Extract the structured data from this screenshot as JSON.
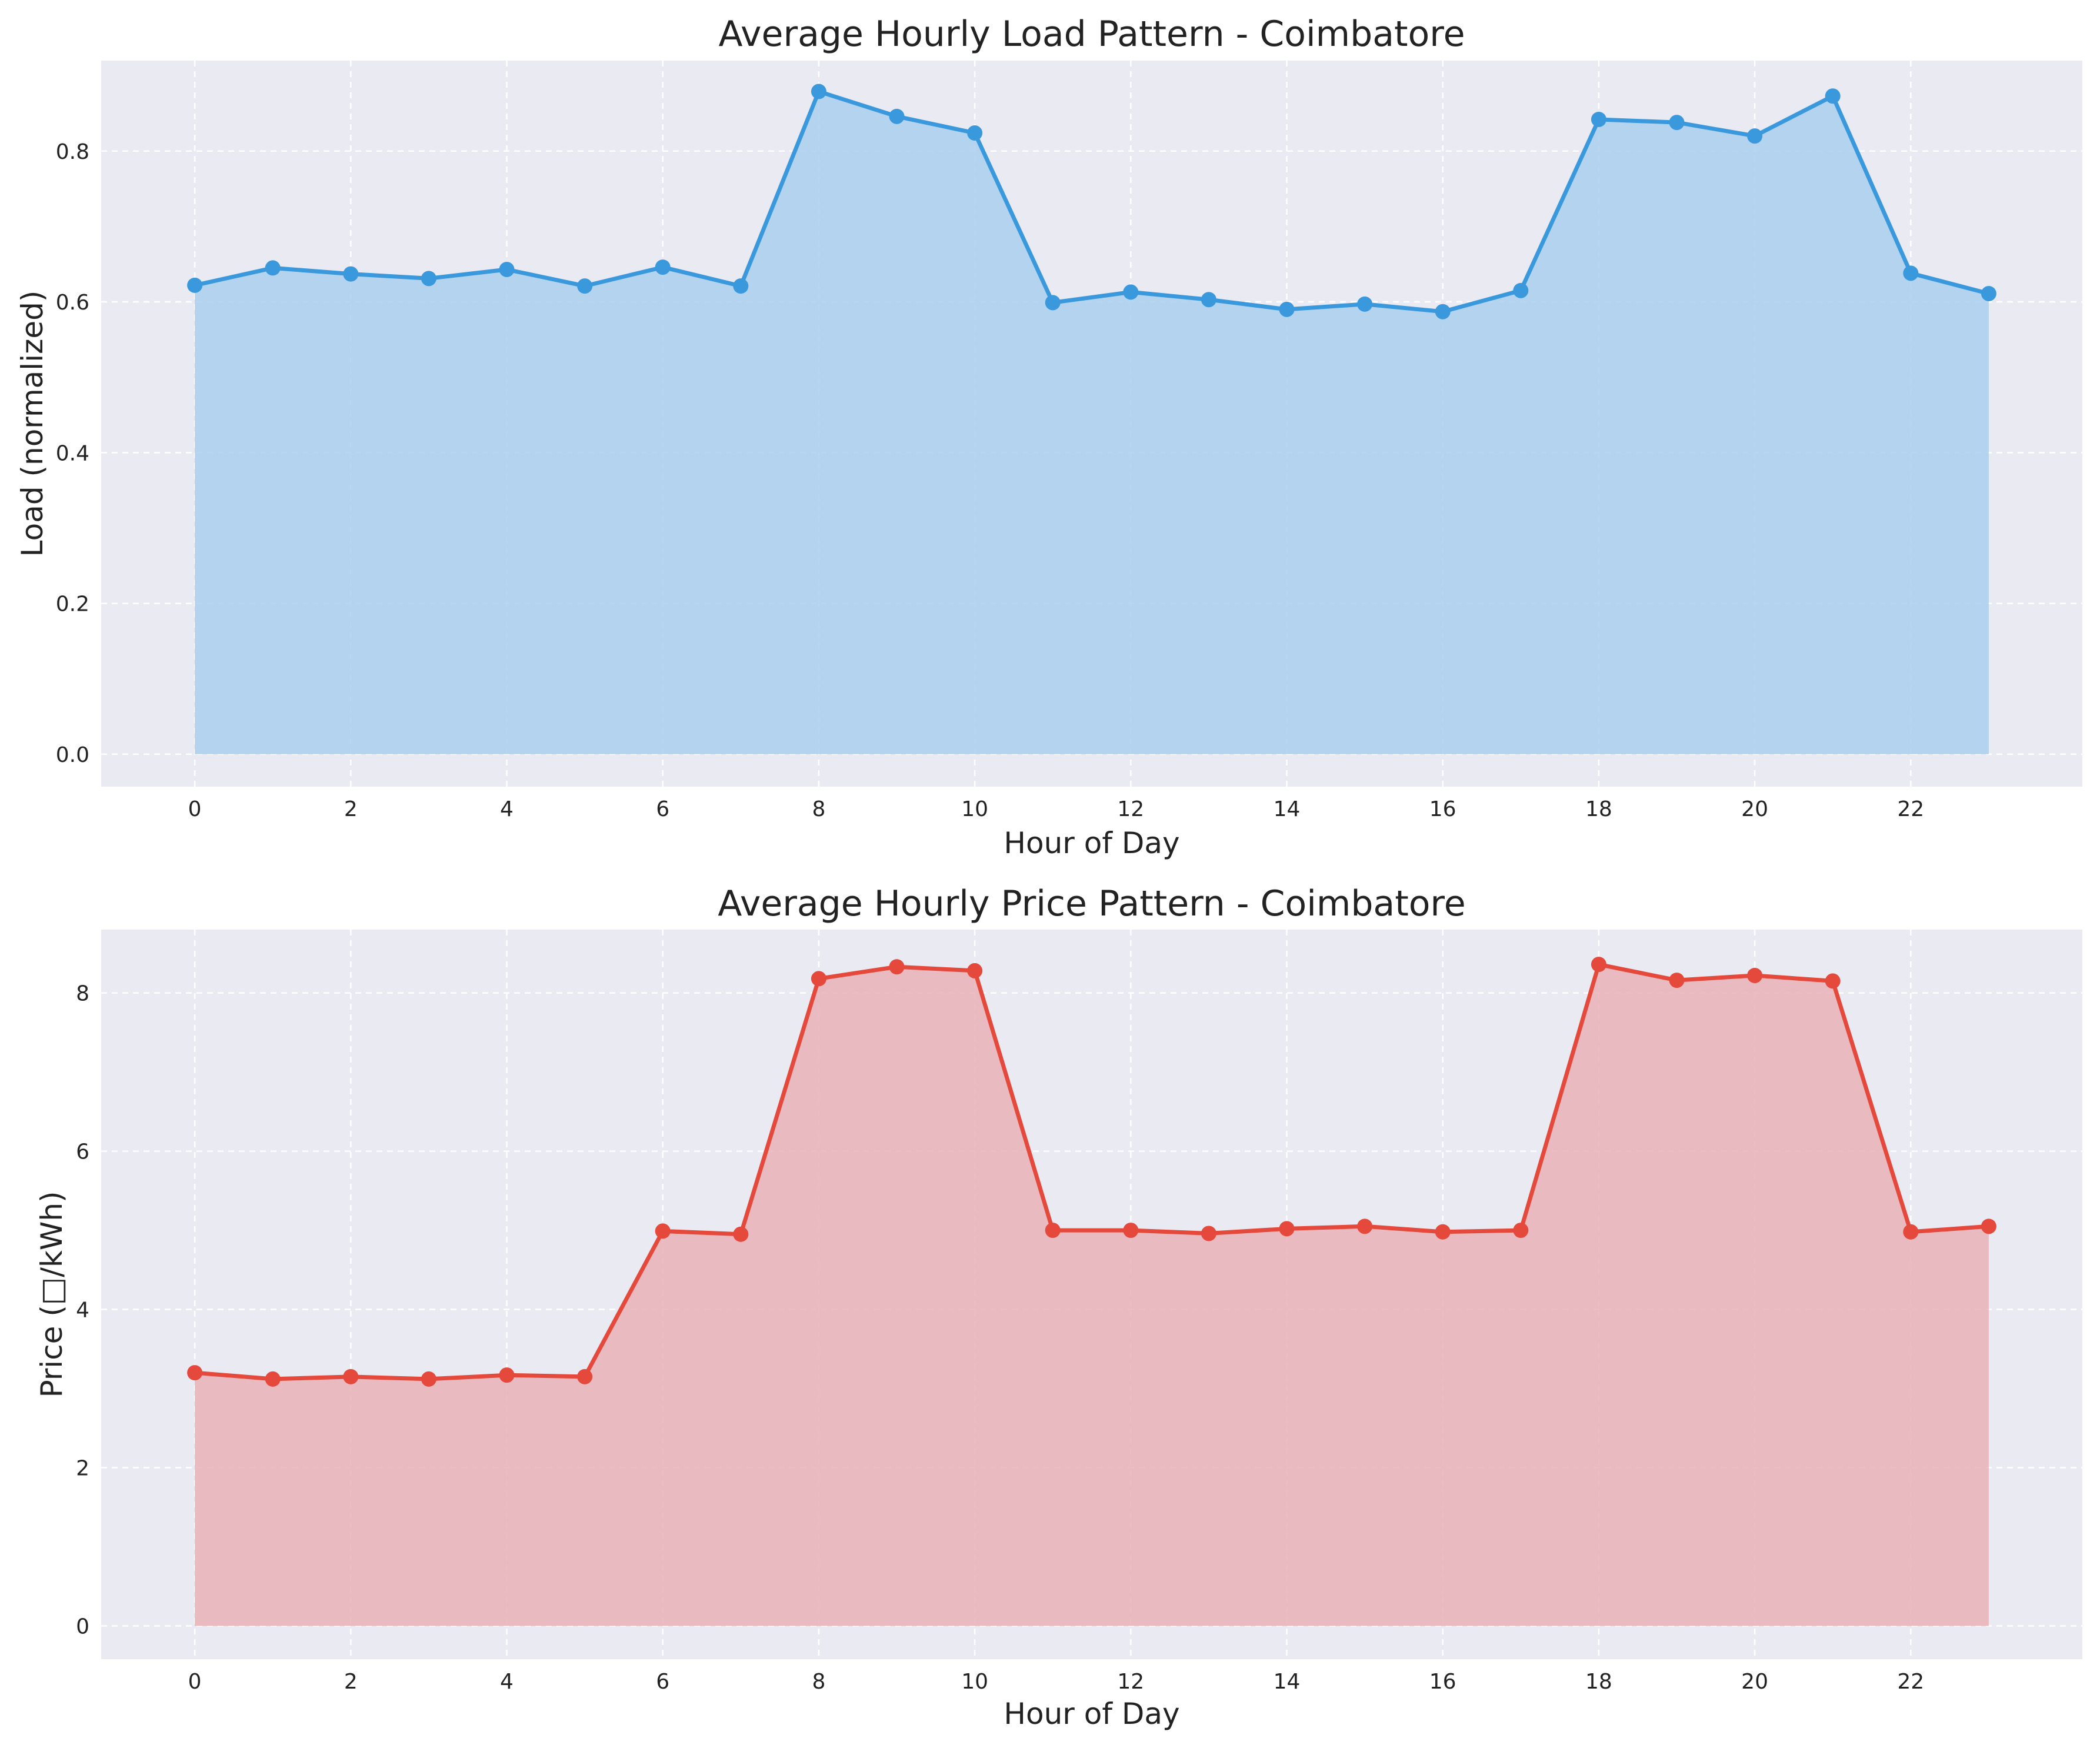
{
  "chart_data": [
    {
      "type": "area",
      "title": "Average Hourly Load Pattern - Coimbatore",
      "xlabel": "Hour of Day",
      "ylabel": "Load (normalized)",
      "x": [
        0,
        1,
        2,
        3,
        4,
        5,
        6,
        7,
        8,
        9,
        10,
        11,
        12,
        13,
        14,
        15,
        16,
        17,
        18,
        19,
        20,
        21,
        22,
        23
      ],
      "series": [
        {
          "values": [
            0.622,
            0.645,
            0.637,
            0.631,
            0.643,
            0.621,
            0.646,
            0.621,
            0.879,
            0.846,
            0.824,
            0.599,
            0.613,
            0.603,
            0.59,
            0.597,
            0.587,
            0.615,
            0.842,
            0.838,
            0.82,
            0.873,
            0.638,
            0.611
          ]
        }
      ],
      "xlim": [
        -1.2,
        24.2
      ],
      "ylim": [
        -0.043,
        0.92
      ],
      "xticks": [
        "0",
        "2",
        "4",
        "6",
        "8",
        "10",
        "12",
        "14",
        "16",
        "18",
        "20",
        "22"
      ],
      "xtick_values": [
        0,
        2,
        4,
        6,
        8,
        10,
        12,
        14,
        16,
        18,
        20,
        22
      ],
      "yticks": [
        "0.0",
        "0.2",
        "0.4",
        "0.6",
        "0.8"
      ],
      "ytick_values": [
        0,
        0.2,
        0.4,
        0.6,
        0.8
      ],
      "grid": true,
      "colors": {
        "line": "#3a99dc",
        "fill": "#a9cfee",
        "background": "#eaeaf2"
      }
    },
    {
      "type": "area",
      "title": "Average Hourly Price Pattern - Coimbatore",
      "xlabel": "Hour of Day",
      "ylabel": "Price (□/kWh)",
      "x": [
        0,
        1,
        2,
        3,
        4,
        5,
        6,
        7,
        8,
        9,
        10,
        11,
        12,
        13,
        14,
        15,
        16,
        17,
        18,
        19,
        20,
        21,
        22,
        23
      ],
      "series": [
        {
          "values": [
            3.2,
            3.12,
            3.15,
            3.12,
            3.17,
            3.15,
            4.99,
            4.95,
            8.18,
            8.33,
            8.28,
            5.0,
            5.0,
            4.96,
            5.02,
            5.05,
            4.98,
            5.0,
            8.36,
            8.16,
            8.22,
            8.15,
            4.98,
            5.05
          ]
        }
      ],
      "xlim": [
        -1.2,
        24.2
      ],
      "ylim": [
        -0.42,
        8.8
      ],
      "xticks": [
        "0",
        "2",
        "4",
        "6",
        "8",
        "10",
        "12",
        "14",
        "16",
        "18",
        "20",
        "22"
      ],
      "xtick_values": [
        0,
        2,
        4,
        6,
        8,
        10,
        12,
        14,
        16,
        18,
        20,
        22
      ],
      "yticks": [
        "0",
        "2",
        "4",
        "6",
        "8"
      ],
      "ytick_values": [
        0,
        2,
        4,
        6,
        8
      ],
      "grid": true,
      "colors": {
        "line": "#e4493b",
        "fill": "#e9b2b7",
        "background": "#eaeaf2"
      }
    }
  ]
}
